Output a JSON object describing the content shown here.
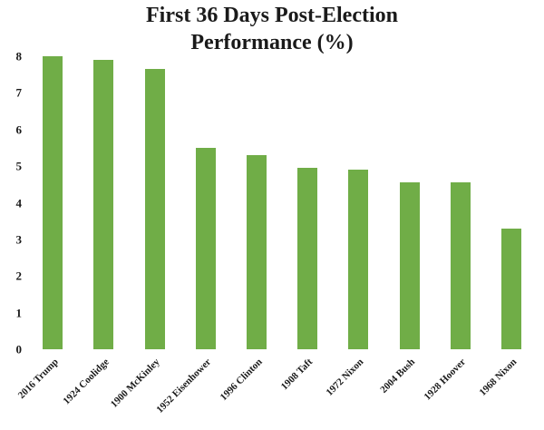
{
  "chart_data": {
    "type": "bar",
    "title": "First 36 Days Post-Election Performance (%)",
    "title_lines": [
      "First 36 Days Post-Election",
      "Performance (%)"
    ],
    "categories": [
      "2016 Trump",
      "1924 Coolidge",
      "1900 McKinley",
      "1952 Eisenhower",
      "1996 Clinton",
      "1908 Taft",
      "1972 Nixon",
      "2004 Bush",
      "1928 Hoover",
      "1968 Nixon"
    ],
    "values": [
      8.0,
      7.9,
      7.65,
      5.5,
      5.3,
      4.95,
      4.9,
      4.55,
      4.55,
      3.3
    ],
    "xlabel": "",
    "ylabel": "",
    "ylim": [
      0,
      8
    ],
    "yticks": [
      0,
      1,
      2,
      3,
      4,
      5,
      6,
      7,
      8
    ],
    "bar_color": "#70ad47",
    "grid": false,
    "legend": false
  }
}
